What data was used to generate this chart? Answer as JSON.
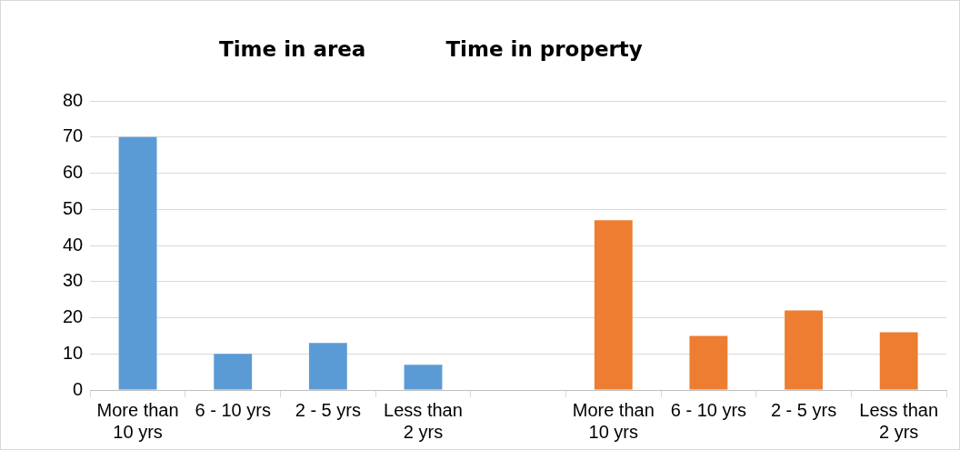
{
  "chart_data": {
    "type": "bar",
    "annotations": [
      "Time in area",
      "Time in property"
    ],
    "categories": [
      "More than 10 yrs",
      "6 - 10 yrs",
      "2 - 5 yrs",
      "Less than 2 yrs",
      null,
      "More than 10 yrs",
      "6 - 10 yrs",
      "2 - 5 yrs",
      "Less than 2 yrs"
    ],
    "series": [
      {
        "color": "#5b9bd5",
        "values": [
          70,
          10,
          13,
          7,
          null,
          null,
          null,
          null,
          null
        ]
      },
      {
        "color": "#ed7d31",
        "values": [
          null,
          null,
          null,
          null,
          null,
          47,
          15,
          22,
          16
        ]
      }
    ],
    "ylim": [
      0,
      80
    ],
    "yticks": [
      0,
      10,
      20,
      30,
      40,
      50,
      60,
      70,
      80
    ],
    "grid": "y",
    "legend": false
  }
}
